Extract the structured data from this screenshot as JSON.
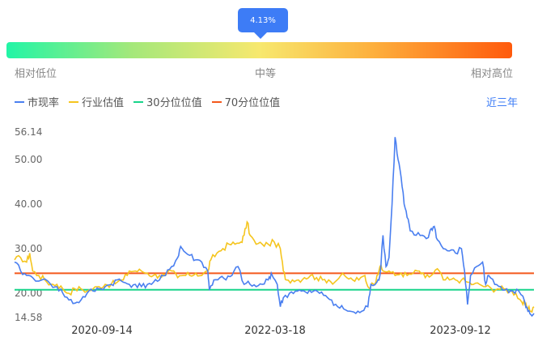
{
  "indicator": {
    "percentile_label": "4.13%",
    "percentile": 0.0413,
    "low_label": "相对低位",
    "mid_label": "中等",
    "high_label": "相对高位",
    "gradient_colors": [
      "#22f5a6",
      "#f7e86e",
      "#ff5a0c"
    ]
  },
  "period_label": "近三年",
  "chart_data": {
    "type": "line",
    "series": [
      {
        "name": "市现率",
        "color": "#4a7ff0"
      },
      {
        "name": "行业估值",
        "color": "#f5c51e"
      },
      {
        "name": "30分位位值",
        "color": "#18d48a",
        "value": 20.8
      },
      {
        "name": "70分位位值",
        "color": "#f4591c",
        "value": 24.5
      }
    ],
    "y_ticks": [
      "56.14",
      "50.00",
      "40.00",
      "30.00",
      "20.00",
      "14.58"
    ],
    "ylim": [
      14.58,
      56.14
    ],
    "x_ticks": [
      "2020-09-14",
      "2022-03-18",
      "2023-09-12"
    ],
    "pe_points": [
      [
        0,
        27
      ],
      [
        2,
        25
      ],
      [
        4,
        24
      ],
      [
        6,
        23.5
      ],
      [
        9,
        23
      ],
      [
        12,
        22
      ],
      [
        14,
        21.5
      ],
      [
        16,
        20
      ],
      [
        18,
        18.5
      ],
      [
        20,
        17.8
      ],
      [
        22,
        18.5
      ],
      [
        24,
        20
      ],
      [
        26,
        20.5
      ],
      [
        28,
        21
      ],
      [
        30,
        21.5
      ],
      [
        32,
        22
      ],
      [
        34,
        23
      ],
      [
        36,
        22.5
      ],
      [
        38,
        22
      ],
      [
        40,
        22
      ],
      [
        42,
        21.5
      ],
      [
        44,
        22
      ],
      [
        46,
        22.5
      ],
      [
        48,
        23
      ],
      [
        50,
        24
      ],
      [
        52,
        26
      ],
      [
        54,
        28
      ],
      [
        55,
        30.5
      ],
      [
        56,
        29.5
      ],
      [
        58,
        28.5
      ],
      [
        60,
        27.5
      ],
      [
        62,
        27
      ],
      [
        64,
        25
      ],
      [
        64.5,
        20.7
      ],
      [
        66,
        23
      ],
      [
        68,
        23.5
      ],
      [
        70,
        23
      ],
      [
        72,
        24
      ],
      [
        74,
        26
      ],
      [
        76,
        22
      ],
      [
        78,
        22
      ],
      [
        80,
        21.5
      ],
      [
        82,
        22
      ],
      [
        84,
        23
      ],
      [
        85,
        24.5
      ],
      [
        87,
        22
      ],
      [
        88,
        17
      ],
      [
        89,
        19
      ],
      [
        91,
        20
      ],
      [
        93,
        20.5
      ],
      [
        95,
        20.5
      ],
      [
        97,
        20
      ],
      [
        99,
        20.5
      ],
      [
        101,
        20
      ],
      [
        103,
        19.5
      ],
      [
        105,
        18.5
      ],
      [
        107,
        17
      ],
      [
        109,
        16.5
      ],
      [
        111,
        16
      ],
      [
        113,
        15.5
      ],
      [
        115,
        16
      ],
      [
        117,
        17
      ],
      [
        118,
        22
      ],
      [
        120,
        22.5
      ],
      [
        121,
        24
      ],
      [
        122,
        33
      ],
      [
        123,
        26
      ],
      [
        124,
        28
      ],
      [
        125,
        40
      ],
      [
        126,
        55
      ],
      [
        127,
        50
      ],
      [
        128,
        46
      ],
      [
        129,
        40
      ],
      [
        130,
        37
      ],
      [
        131,
        34
      ],
      [
        133,
        33
      ],
      [
        135,
        33
      ],
      [
        137,
        32.5
      ],
      [
        138,
        34.5
      ],
      [
        139,
        35
      ],
      [
        140,
        32
      ],
      [
        142,
        30
      ],
      [
        144,
        29.5
      ],
      [
        146,
        29
      ],
      [
        148,
        30
      ],
      [
        149,
        25
      ],
      [
        150,
        17.5
      ],
      [
        151,
        24
      ],
      [
        153,
        26
      ],
      [
        155,
        27
      ],
      [
        156,
        22
      ],
      [
        157,
        24
      ],
      [
        159,
        22
      ],
      [
        161,
        21.5
      ],
      [
        163,
        21
      ],
      [
        165,
        20.5
      ],
      [
        167,
        20.5
      ],
      [
        169,
        18
      ],
      [
        170,
        16
      ],
      [
        171,
        15.2
      ],
      [
        172,
        15.5
      ]
    ],
    "ind_points": [
      [
        0,
        27.5
      ],
      [
        2,
        28
      ],
      [
        4,
        27
      ],
      [
        5,
        29
      ],
      [
        6,
        25
      ],
      [
        8,
        24
      ],
      [
        10,
        23
      ],
      [
        12,
        22
      ],
      [
        14,
        22
      ],
      [
        16,
        21
      ],
      [
        18,
        20
      ],
      [
        20,
        21
      ],
      [
        22,
        21
      ],
      [
        24,
        20.5
      ],
      [
        26,
        21
      ],
      [
        28,
        21.5
      ],
      [
        30,
        22
      ],
      [
        32,
        22
      ],
      [
        34,
        22.5
      ],
      [
        36,
        23
      ],
      [
        38,
        25
      ],
      [
        40,
        25
      ],
      [
        42,
        25
      ],
      [
        44,
        24.5
      ],
      [
        46,
        24
      ],
      [
        48,
        24
      ],
      [
        50,
        24
      ],
      [
        52,
        25
      ],
      [
        54,
        23.5
      ],
      [
        56,
        24
      ],
      [
        58,
        24
      ],
      [
        60,
        24.5
      ],
      [
        62,
        24
      ],
      [
        64,
        25
      ],
      [
        65,
        27.5
      ],
      [
        67,
        29
      ],
      [
        69,
        30
      ],
      [
        71,
        31
      ],
      [
        73,
        31
      ],
      [
        75,
        31.5
      ],
      [
        76,
        33
      ],
      [
        77,
        36
      ],
      [
        78,
        33
      ],
      [
        80,
        31
      ],
      [
        82,
        31
      ],
      [
        84,
        31
      ],
      [
        86,
        31.5
      ],
      [
        88,
        30
      ],
      [
        89,
        25
      ],
      [
        90,
        23
      ],
      [
        92,
        23
      ],
      [
        94,
        23
      ],
      [
        96,
        23.5
      ],
      [
        98,
        24
      ],
      [
        100,
        23.5
      ],
      [
        102,
        23
      ],
      [
        104,
        23
      ],
      [
        106,
        22.5
      ],
      [
        108,
        24
      ],
      [
        110,
        23.5
      ],
      [
        112,
        23
      ],
      [
        114,
        23
      ],
      [
        116,
        24
      ],
      [
        117,
        21.5
      ],
      [
        119,
        22
      ],
      [
        120,
        24
      ],
      [
        121,
        26
      ],
      [
        122,
        25
      ],
      [
        124,
        25
      ],
      [
        126,
        24
      ],
      [
        128,
        24.5
      ],
      [
        130,
        24
      ],
      [
        132,
        24.5
      ],
      [
        134,
        25
      ],
      [
        136,
        23.5
      ],
      [
        138,
        24
      ],
      [
        140,
        25.5
      ],
      [
        142,
        23
      ],
      [
        144,
        23
      ],
      [
        146,
        23
      ],
      [
        148,
        23
      ],
      [
        150,
        22.5
      ],
      [
        152,
        22
      ],
      [
        154,
        22
      ],
      [
        156,
        21.5
      ],
      [
        158,
        21
      ],
      [
        160,
        21
      ],
      [
        162,
        21
      ],
      [
        164,
        20.5
      ],
      [
        166,
        20
      ],
      [
        168,
        18
      ],
      [
        169,
        17.5
      ],
      [
        170,
        16.5
      ],
      [
        171,
        16
      ],
      [
        172,
        17
      ]
    ]
  }
}
